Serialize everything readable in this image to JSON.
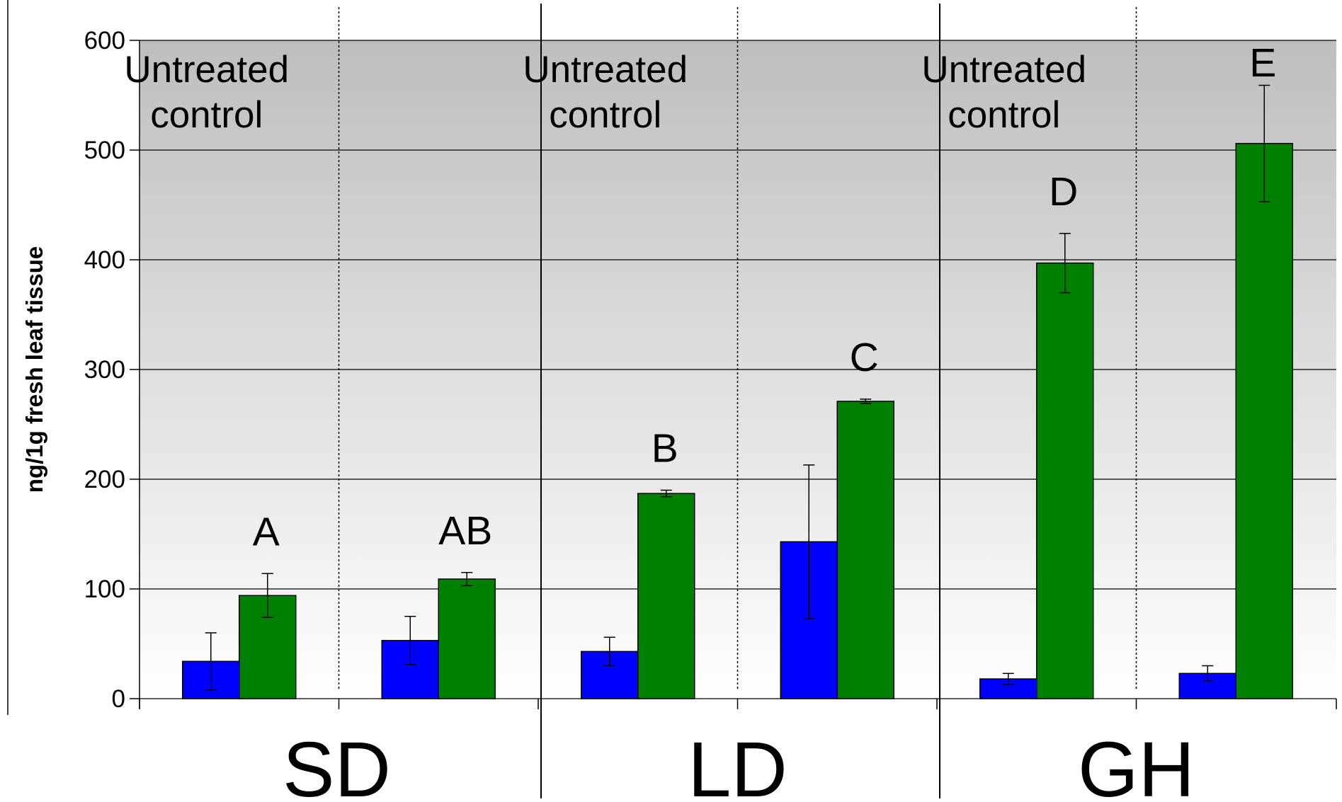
{
  "chart_data": {
    "type": "bar",
    "ylabel": "ng/1g fresh leaf tissue",
    "ylim": [
      0,
      600
    ],
    "yticks": [
      0,
      100,
      200,
      300,
      400,
      500,
      600
    ],
    "grid": true,
    "background": "gradient gray (dark at top) to white",
    "colors": {
      "blue": "#0000ff",
      "green": "#008000"
    },
    "groups": [
      {
        "label": "SD",
        "control_label": [
          "Untreated",
          "control"
        ],
        "pairs": [
          {
            "blue": 34,
            "blue_err": 26,
            "green": 94,
            "green_err": 20,
            "annotation": "A"
          },
          {
            "blue": 53,
            "blue_err": 22,
            "green": 109,
            "green_err": 6,
            "annotation": "AB"
          }
        ]
      },
      {
        "label": "LD",
        "control_label": [
          "Untreated",
          "control"
        ],
        "pairs": [
          {
            "blue": 43,
            "blue_err": 13,
            "green": 187,
            "green_err": 3,
            "annotation": "B"
          },
          {
            "blue": 143,
            "blue_err": 70,
            "green": 271,
            "green_err": 2,
            "annotation": "C"
          }
        ]
      },
      {
        "label": "GH",
        "control_label": [
          "Untreated",
          "control"
        ],
        "pairs": [
          {
            "blue": 18,
            "blue_err": 5,
            "green": 397,
            "green_err": 27,
            "annotation": "D"
          },
          {
            "blue": 23,
            "blue_err": 7,
            "green": 506,
            "green_err": 53,
            "annotation": "E"
          }
        ]
      }
    ]
  }
}
